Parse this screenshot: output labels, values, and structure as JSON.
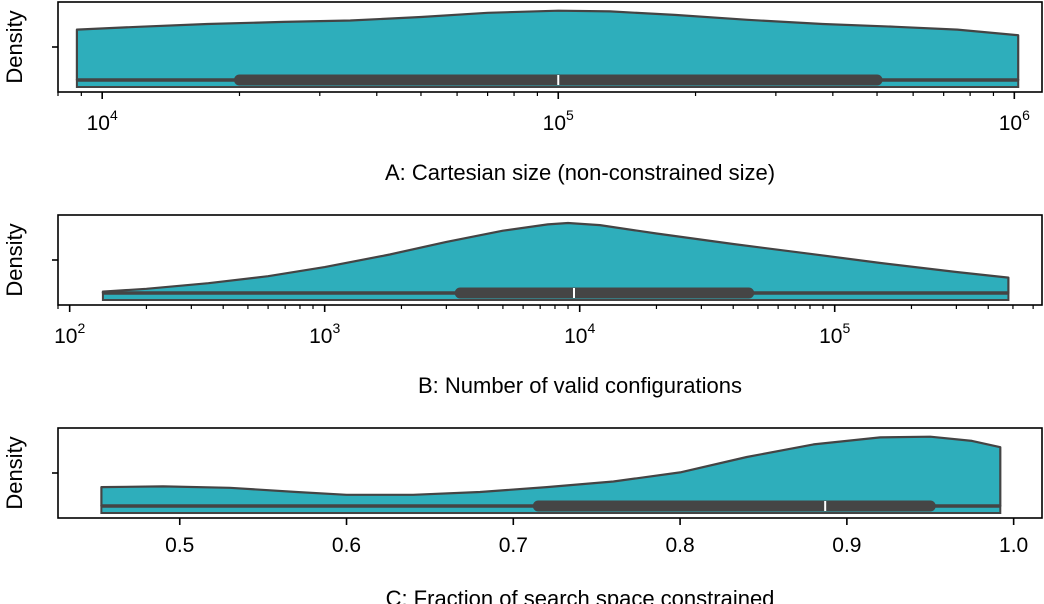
{
  "colors": {
    "fill": "#2eaebb",
    "edge": "#444444",
    "box": "#454545",
    "median": "#ffffff",
    "frame": "#000000"
  },
  "chart_data": [
    {
      "type": "violin",
      "orientation": "horizontal",
      "scale": "log",
      "title": "",
      "xlabel": "A: Cartesian size (non-constrained size)",
      "ylabel": "Density",
      "xlim": [
        8000,
        1150000
      ],
      "ticks": [
        {
          "value": 10000,
          "base": "10",
          "exp": "4"
        },
        {
          "value": 100000,
          "base": "10",
          "exp": "5"
        },
        {
          "value": 1000000,
          "base": "10",
          "exp": "6"
        }
      ],
      "data_min": 8800,
      "data_max": 1020000,
      "q1": 20000,
      "median": 100000,
      "q3": 500000,
      "density": [
        [
          8800,
          0.72
        ],
        [
          12000,
          0.76
        ],
        [
          17000,
          0.8
        ],
        [
          25000,
          0.83
        ],
        [
          35000,
          0.85
        ],
        [
          50000,
          0.9
        ],
        [
          70000,
          0.96
        ],
        [
          100000,
          0.99
        ],
        [
          130000,
          0.98
        ],
        [
          180000,
          0.93
        ],
        [
          260000,
          0.86
        ],
        [
          380000,
          0.8
        ],
        [
          550000,
          0.76
        ],
        [
          750000,
          0.72
        ],
        [
          1020000,
          0.64
        ]
      ]
    },
    {
      "type": "violin",
      "orientation": "horizontal",
      "scale": "log",
      "title": "",
      "xlabel": "B: Number of valid configurations",
      "ylabel": "Density",
      "xlim": [
        90,
        650000
      ],
      "ticks": [
        {
          "value": 100,
          "base": "10",
          "exp": "2"
        },
        {
          "value": 1000,
          "base": "10",
          "exp": "3"
        },
        {
          "value": 10000,
          "base": "10",
          "exp": "4"
        },
        {
          "value": 100000,
          "base": "10",
          "exp": "5"
        }
      ],
      "data_min": 135,
      "data_max": 480000,
      "q1": 3400,
      "median": 9500,
      "q3": 46000,
      "density": [
        [
          135,
          0.02
        ],
        [
          200,
          0.06
        ],
        [
          350,
          0.14
        ],
        [
          600,
          0.24
        ],
        [
          1000,
          0.37
        ],
        [
          1800,
          0.55
        ],
        [
          3000,
          0.73
        ],
        [
          5000,
          0.89
        ],
        [
          7500,
          0.98
        ],
        [
          9000,
          1.0
        ],
        [
          12000,
          0.97
        ],
        [
          20000,
          0.85
        ],
        [
          40000,
          0.7
        ],
        [
          80000,
          0.56
        ],
        [
          150000,
          0.43
        ],
        [
          300000,
          0.3
        ],
        [
          480000,
          0.22
        ]
      ]
    },
    {
      "type": "violin",
      "orientation": "horizontal",
      "scale": "linear",
      "title": "",
      "xlabel": "C: Fraction of search space constrained",
      "ylabel": "Density",
      "xlim": [
        0.427,
        1.017
      ],
      "ticks": [
        {
          "value": 0.5,
          "label": "0.5"
        },
        {
          "value": 0.6,
          "label": "0.6"
        },
        {
          "value": 0.7,
          "label": "0.7"
        },
        {
          "value": 0.8,
          "label": "0.8"
        },
        {
          "value": 0.9,
          "label": "0.9"
        },
        {
          "value": 1.0,
          "label": "1.0"
        }
      ],
      "data_min": 0.453,
      "data_max": 0.992,
      "q1": 0.715,
      "median": 0.887,
      "q3": 0.95,
      "density": [
        [
          0.453,
          0.27
        ],
        [
          0.49,
          0.28
        ],
        [
          0.53,
          0.26
        ],
        [
          0.57,
          0.2
        ],
        [
          0.6,
          0.16
        ],
        [
          0.64,
          0.16
        ],
        [
          0.68,
          0.2
        ],
        [
          0.72,
          0.27
        ],
        [
          0.76,
          0.35
        ],
        [
          0.8,
          0.48
        ],
        [
          0.84,
          0.7
        ],
        [
          0.88,
          0.88
        ],
        [
          0.92,
          0.98
        ],
        [
          0.95,
          0.99
        ],
        [
          0.975,
          0.93
        ],
        [
          0.992,
          0.84
        ]
      ]
    }
  ]
}
